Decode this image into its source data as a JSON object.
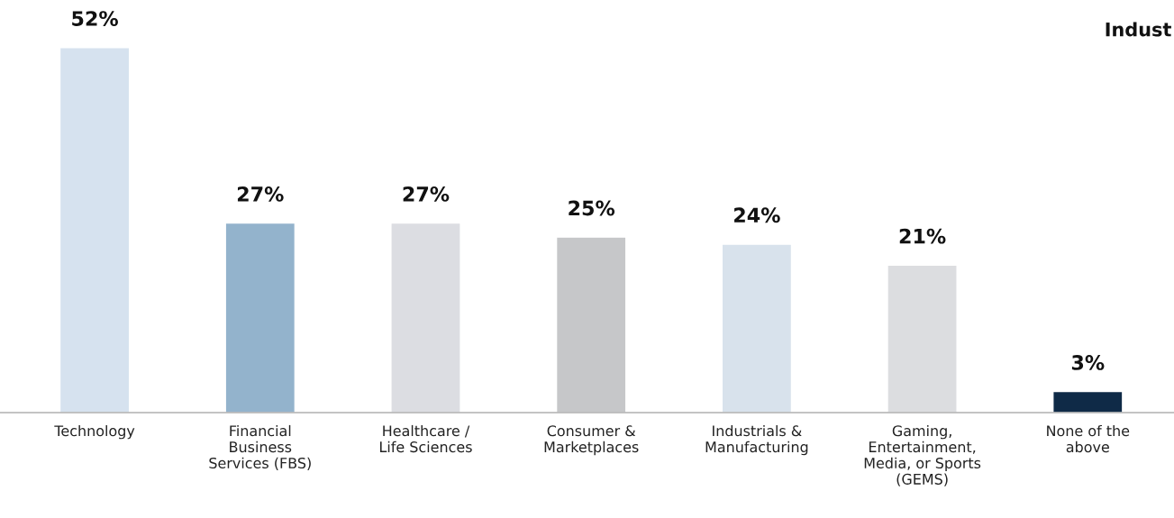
{
  "chart_data": {
    "type": "bar",
    "title": "Indust",
    "categories": [
      "Technology",
      "Financial\nBusiness\nServices (FBS)",
      "Healthcare /\nLife Sciences",
      "Consumer &\nMarketplaces",
      "Industrials &\nManufacturing",
      "Gaming,\nEntertainment,\nMedia, or Sports\n(GEMS)",
      "None of the\nabove"
    ],
    "values": [
      52,
      27,
      27,
      25,
      24,
      21,
      3
    ],
    "colors": [
      "#d6e2ef",
      "#93b3cc",
      "#dcdde2",
      "#c6c7c9",
      "#d8e2ec",
      "#dcdde0",
      "#0f2a47"
    ],
    "value_labels": [
      "52%",
      "27%",
      "27%",
      "25%",
      "24%",
      "21%",
      "3%"
    ],
    "grid": false,
    "legend": false
  }
}
